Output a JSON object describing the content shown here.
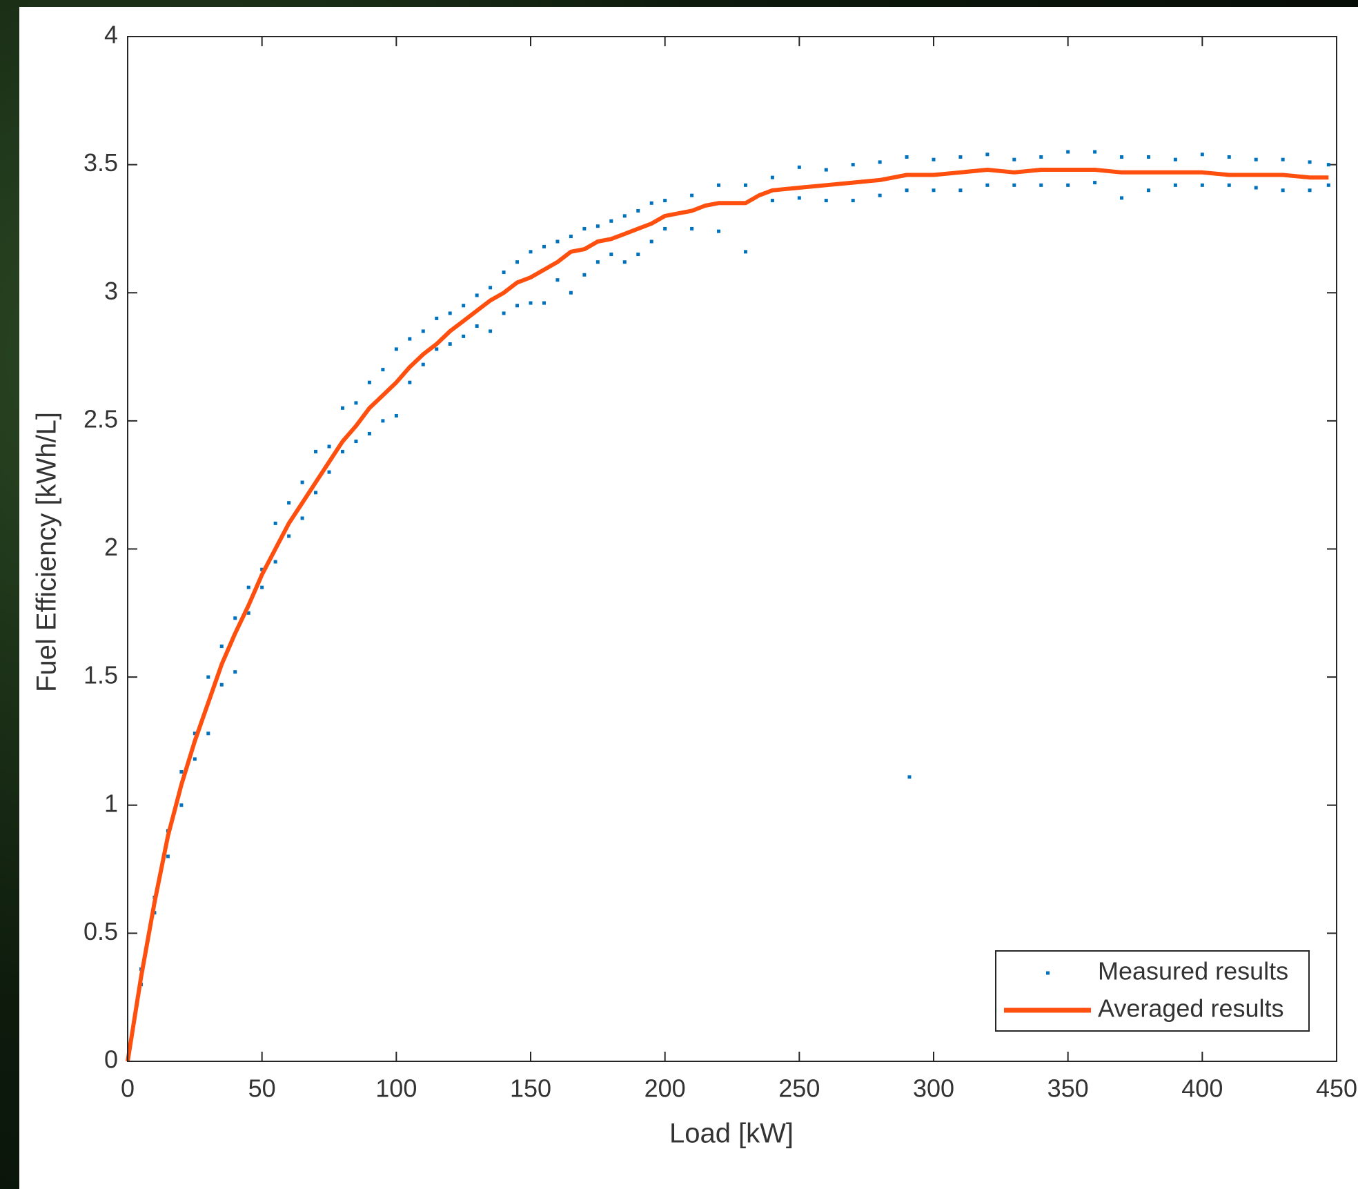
{
  "chart_data": {
    "type": "scatter",
    "xlabel": "Load [kW]",
    "ylabel": "Fuel Efficiency [kWh/L]",
    "xlim": [
      0,
      450
    ],
    "xticks": [
      0,
      50,
      100,
      150,
      200,
      250,
      300,
      350,
      400,
      450
    ],
    "ylim": [
      0,
      4
    ],
    "yticks": [
      0,
      0.5,
      1,
      1.5,
      2,
      2.5,
      3,
      3.5,
      4
    ],
    "legend": "lower right",
    "series": [
      {
        "name": "Measured results",
        "type": "scatter",
        "color": "#0072bd",
        "x": [
          5,
          5,
          10,
          10,
          15,
          15,
          20,
          20,
          25,
          25,
          30,
          30,
          35,
          35,
          40,
          40,
          45,
          45,
          50,
          50,
          55,
          55,
          60,
          60,
          65,
          65,
          70,
          70,
          75,
          75,
          80,
          80,
          85,
          85,
          90,
          90,
          95,
          95,
          100,
          100,
          105,
          105,
          110,
          110,
          115,
          115,
          120,
          120,
          125,
          125,
          130,
          130,
          135,
          135,
          140,
          140,
          145,
          145,
          150,
          150,
          155,
          155,
          160,
          160,
          165,
          165,
          170,
          170,
          175,
          175,
          180,
          180,
          185,
          185,
          190,
          190,
          195,
          195,
          200,
          200,
          210,
          210,
          220,
          220,
          230,
          230,
          240,
          240,
          250,
          250,
          260,
          260,
          270,
          270,
          280,
          280,
          290,
          290,
          291,
          300,
          300,
          310,
          310,
          320,
          320,
          330,
          330,
          340,
          340,
          350,
          350,
          360,
          360,
          370,
          370,
          380,
          380,
          390,
          390,
          400,
          400,
          410,
          410,
          420,
          420,
          430,
          430,
          440,
          440,
          447,
          447
        ],
        "values": [
          0.3,
          0.36,
          0.58,
          0.64,
          0.8,
          0.9,
          1.0,
          1.13,
          1.18,
          1.28,
          1.28,
          1.5,
          1.47,
          1.62,
          1.52,
          1.73,
          1.75,
          1.85,
          1.85,
          1.92,
          1.95,
          2.1,
          2.05,
          2.18,
          2.12,
          2.26,
          2.22,
          2.38,
          2.3,
          2.4,
          2.38,
          2.55,
          2.42,
          2.57,
          2.45,
          2.65,
          2.5,
          2.7,
          2.52,
          2.78,
          2.65,
          2.82,
          2.72,
          2.85,
          2.78,
          2.9,
          2.8,
          2.92,
          2.83,
          2.95,
          2.87,
          2.99,
          2.85,
          3.02,
          2.92,
          3.08,
          2.95,
          3.12,
          2.96,
          3.16,
          2.96,
          3.18,
          3.05,
          3.2,
          3.0,
          3.22,
          3.07,
          3.25,
          3.12,
          3.26,
          3.15,
          3.28,
          3.12,
          3.3,
          3.15,
          3.32,
          3.2,
          3.35,
          3.25,
          3.36,
          3.25,
          3.38,
          3.24,
          3.42,
          3.16,
          3.42,
          3.36,
          3.45,
          3.37,
          3.49,
          3.36,
          3.48,
          3.36,
          3.5,
          3.38,
          3.51,
          3.4,
          3.53,
          1.11,
          3.4,
          3.52,
          3.4,
          3.53,
          3.42,
          3.54,
          3.42,
          3.52,
          3.42,
          3.53,
          3.42,
          3.55,
          3.43,
          3.55,
          3.37,
          3.53,
          3.4,
          3.53,
          3.42,
          3.52,
          3.42,
          3.54,
          3.42,
          3.53,
          3.41,
          3.52,
          3.4,
          3.52,
          3.4,
          3.51,
          3.42,
          3.5
        ]
      },
      {
        "name": "Averaged results",
        "type": "line",
        "color": "#ff4f0f",
        "x": [
          0,
          5,
          10,
          15,
          20,
          25,
          30,
          35,
          40,
          45,
          50,
          55,
          60,
          65,
          70,
          75,
          80,
          85,
          90,
          95,
          100,
          105,
          110,
          115,
          120,
          125,
          130,
          135,
          140,
          145,
          150,
          155,
          160,
          165,
          170,
          175,
          180,
          185,
          190,
          195,
          200,
          205,
          210,
          215,
          220,
          230,
          235,
          240,
          250,
          260,
          270,
          280,
          290,
          300,
          310,
          320,
          330,
          340,
          350,
          360,
          370,
          380,
          390,
          400,
          410,
          420,
          430,
          440,
          447
        ],
        "values": [
          0,
          0.33,
          0.62,
          0.88,
          1.08,
          1.25,
          1.4,
          1.55,
          1.67,
          1.78,
          1.9,
          2.0,
          2.1,
          2.18,
          2.26,
          2.34,
          2.42,
          2.48,
          2.55,
          2.6,
          2.65,
          2.71,
          2.76,
          2.8,
          2.85,
          2.89,
          2.93,
          2.97,
          3.0,
          3.04,
          3.06,
          3.09,
          3.12,
          3.16,
          3.17,
          3.2,
          3.21,
          3.23,
          3.25,
          3.27,
          3.3,
          3.31,
          3.32,
          3.34,
          3.35,
          3.35,
          3.38,
          3.4,
          3.41,
          3.42,
          3.43,
          3.44,
          3.46,
          3.46,
          3.47,
          3.48,
          3.47,
          3.48,
          3.48,
          3.48,
          3.47,
          3.47,
          3.47,
          3.47,
          3.46,
          3.46,
          3.46,
          3.45,
          3.45
        ]
      }
    ]
  }
}
